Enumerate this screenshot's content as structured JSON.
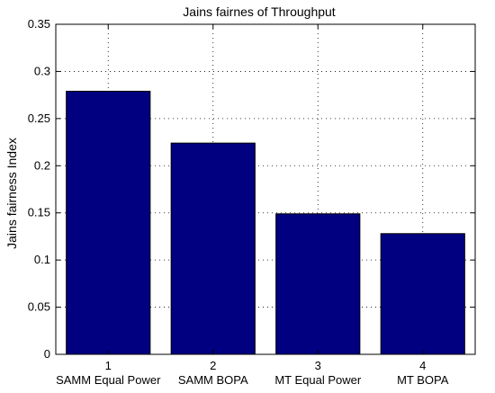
{
  "chart_data": {
    "type": "bar",
    "title": "Jains fairnes of Throughput",
    "xlabel": "",
    "ylabel": "Jains fairness Index",
    "categories": [
      "1",
      "2",
      "3",
      "4"
    ],
    "category_names": [
      "SAMM Equal Power",
      "SAMM BOPA",
      "MT Equal Power",
      "MT BOPA"
    ],
    "values": [
      0.279,
      0.224,
      0.149,
      0.128
    ],
    "ylim": [
      0,
      0.35
    ],
    "xlim": [
      0.5,
      4.5
    ],
    "yticks": [
      "0",
      "0.05",
      "0.1",
      "0.15",
      "0.2",
      "0.25",
      "0.3",
      "0.35"
    ],
    "ytick_values": [
      0,
      0.05,
      0.1,
      0.15,
      0.2,
      0.25,
      0.3,
      0.35
    ],
    "grid": true,
    "bar_color": "#000080"
  }
}
